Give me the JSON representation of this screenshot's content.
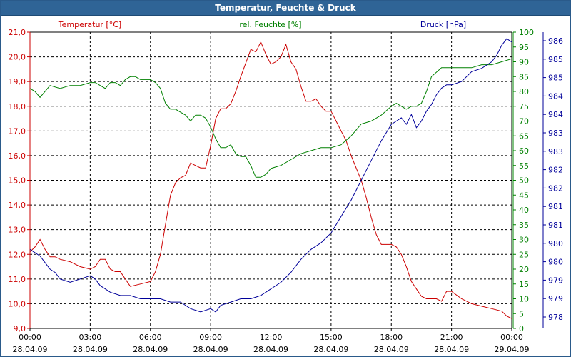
{
  "window": {
    "title": "Temperatur, Feuchte & Druck"
  },
  "colors": {
    "temperature": "#cc0000",
    "humidity": "#008000",
    "pressure": "#00009a",
    "grid": "#000000",
    "axis_text": "#000000"
  },
  "chart_data": {
    "type": "line",
    "title": "Temperatur, Feuchte & Druck",
    "grid": true,
    "x_range": [
      0,
      24
    ],
    "x_ticks": [
      {
        "x": 0,
        "time": "00:00",
        "date": "28.04.09"
      },
      {
        "x": 3,
        "time": "03:00",
        "date": "28.04.09"
      },
      {
        "x": 6,
        "time": "06:00",
        "date": "28.04.09"
      },
      {
        "x": 9,
        "time": "09:00",
        "date": "28.04.09"
      },
      {
        "x": 12,
        "time": "12:00",
        "date": "28.04.09"
      },
      {
        "x": 15,
        "time": "15:00",
        "date": "28.04.09"
      },
      {
        "x": 18,
        "time": "18:00",
        "date": "28.04.09"
      },
      {
        "x": 21,
        "time": "21:00",
        "date": "28.04.09"
      },
      {
        "x": 24,
        "time": "00:00",
        "date": "29.04.09"
      }
    ],
    "axes": {
      "temperature": {
        "label": "Temperatur [°C]",
        "range": [
          9.0,
          21.0
        ],
        "ticks": [
          "9,0",
          "10,0",
          "11,0",
          "12,0",
          "13,0",
          "14,0",
          "15,0",
          "16,0",
          "17,0",
          "18,0",
          "19,0",
          "20,0",
          "21,0"
        ]
      },
      "humidity": {
        "label": "rel. Feuchte [%]",
        "range": [
          0,
          100
        ],
        "ticks": [
          "0",
          "5",
          "10",
          "15",
          "20",
          "25",
          "30",
          "35",
          "40",
          "45",
          "50",
          "55",
          "60",
          "65",
          "70",
          "75",
          "80",
          "85",
          "90",
          "95",
          "100"
        ]
      },
      "pressure": {
        "label": "Druck [hPa]",
        "range": [
          977.5,
          986.5
        ],
        "ticks": [
          "978",
          "979",
          "979",
          "980",
          "980",
          "981",
          "981",
          "982",
          "982",
          "983",
          "983",
          "984",
          "984",
          "985",
          "985",
          "986"
        ]
      }
    },
    "series": [
      {
        "name": "Temperatur [°C]",
        "axis": "temperature",
        "x": [
          0,
          0.25,
          0.5,
          0.75,
          1,
          1.25,
          1.5,
          2,
          2.5,
          3,
          3.25,
          3.5,
          3.75,
          4,
          4.25,
          4.5,
          5,
          5.5,
          6,
          6.25,
          6.5,
          6.75,
          7,
          7.25,
          7.5,
          7.75,
          8,
          8.25,
          8.5,
          8.75,
          9,
          9.25,
          9.5,
          9.75,
          10,
          10.25,
          10.5,
          11,
          11.25,
          11.5,
          11.75,
          12,
          12.25,
          12.5,
          12.75,
          13,
          13.25,
          13.5,
          13.75,
          14,
          14.25,
          14.5,
          14.75,
          15,
          15.25,
          15.5,
          15.75,
          16,
          16.25,
          16.5,
          16.75,
          17,
          17.25,
          17.5,
          17.75,
          18,
          18.25,
          18.5,
          18.75,
          19,
          19.25,
          19.5,
          19.75,
          20,
          20.25,
          20.5,
          20.75,
          21,
          21.5,
          22,
          22.5,
          23,
          23.5,
          23.75,
          24
        ],
        "values": [
          12.1,
          12.3,
          12.6,
          12.2,
          11.9,
          11.9,
          11.8,
          11.7,
          11.5,
          11.4,
          11.5,
          11.8,
          11.8,
          11.4,
          11.3,
          11.3,
          10.7,
          10.8,
          10.9,
          11.3,
          12.0,
          13.2,
          14.4,
          14.9,
          15.1,
          15.2,
          15.7,
          15.6,
          15.5,
          15.5,
          16.4,
          17.5,
          17.9,
          17.9,
          18.1,
          18.6,
          19.2,
          20.3,
          20.2,
          20.6,
          20.1,
          19.7,
          19.8,
          20.0,
          20.5,
          19.8,
          19.5,
          18.8,
          18.2,
          18.2,
          18.3,
          18.0,
          17.8,
          17.8,
          17.4,
          17.0,
          16.6,
          16.0,
          15.5,
          15.0,
          14.3,
          13.5,
          12.8,
          12.4,
          12.4,
          12.4,
          12.3,
          12.0,
          11.5,
          10.9,
          10.6,
          10.3,
          10.2,
          10.2,
          10.2,
          10.1,
          10.5,
          10.5,
          10.2,
          10.0,
          9.9,
          9.8,
          9.7,
          9.5,
          9.4
        ]
      },
      {
        "name": "rel. Feuchte [%]",
        "axis": "humidity",
        "x": [
          0,
          0.25,
          0.5,
          0.75,
          1,
          1.5,
          2,
          2.5,
          3,
          3.25,
          3.5,
          3.75,
          4,
          4.25,
          4.5,
          4.75,
          5,
          5.25,
          5.5,
          5.75,
          6,
          6.25,
          6.5,
          6.75,
          7,
          7.25,
          7.5,
          7.75,
          8,
          8.25,
          8.5,
          8.75,
          9,
          9.25,
          9.5,
          9.75,
          10,
          10.25,
          10.5,
          10.75,
          11,
          11.25,
          11.5,
          11.75,
          12,
          12.5,
          13,
          13.5,
          14,
          14.5,
          15,
          15.5,
          16,
          16.5,
          17,
          17.5,
          18,
          18.25,
          18.5,
          18.75,
          19,
          19.25,
          19.5,
          19.75,
          20,
          20.5,
          21,
          21.5,
          22,
          22.5,
          23,
          23.5,
          24
        ],
        "values": [
          81,
          80,
          78,
          80,
          82,
          81,
          82,
          82,
          83,
          83,
          82,
          81,
          83,
          83,
          82,
          84,
          85,
          85,
          84,
          84,
          84,
          83,
          81,
          76,
          74,
          74,
          73,
          72,
          70,
          72,
          72,
          71,
          68,
          64,
          61,
          61,
          62,
          59,
          58,
          58,
          55,
          51,
          51,
          52,
          54,
          55,
          57,
          59,
          60,
          61,
          61,
          62,
          65,
          69,
          70,
          72,
          75,
          76,
          75,
          74,
          75,
          75,
          76,
          80,
          85,
          88,
          88,
          88,
          88,
          89,
          89,
          90,
          91
        ]
      },
      {
        "name": "Druck [hPa]",
        "axis": "pressure",
        "x": [
          0,
          0.25,
          0.5,
          0.75,
          1,
          1.25,
          1.5,
          2,
          2.5,
          3,
          3.25,
          3.5,
          3.75,
          4,
          4.5,
          5,
          5.5,
          6,
          6.5,
          7,
          7.5,
          8,
          8.5,
          9,
          9.25,
          9.5,
          10,
          10.5,
          11,
          11.5,
          12,
          12.5,
          13,
          13.5,
          14,
          14.5,
          15,
          15.5,
          16,
          16.5,
          17,
          17.5,
          18,
          18.25,
          18.5,
          18.75,
          19,
          19.25,
          19.5,
          19.75,
          20,
          20.25,
          20.5,
          20.75,
          21,
          21.5,
          22,
          22.5,
          23,
          23.25,
          23.5,
          23.75,
          24
        ],
        "values": [
          979.9,
          979.8,
          979.7,
          979.5,
          979.3,
          979.2,
          979.0,
          978.9,
          979.0,
          979.1,
          979.0,
          978.8,
          978.7,
          978.6,
          978.5,
          978.5,
          978.4,
          978.4,
          978.4,
          978.3,
          978.3,
          978.1,
          978.0,
          978.1,
          978.0,
          978.2,
          978.3,
          978.4,
          978.4,
          978.5,
          978.7,
          978.9,
          979.2,
          979.6,
          979.9,
          980.1,
          980.4,
          980.9,
          981.4,
          982.0,
          982.6,
          983.2,
          983.7,
          983.8,
          983.9,
          983.7,
          984.0,
          983.6,
          983.8,
          984.1,
          984.3,
          984.6,
          984.8,
          984.9,
          984.9,
          985.0,
          985.3,
          985.4,
          985.6,
          985.8,
          986.1,
          986.3,
          986.2
        ]
      }
    ]
  }
}
